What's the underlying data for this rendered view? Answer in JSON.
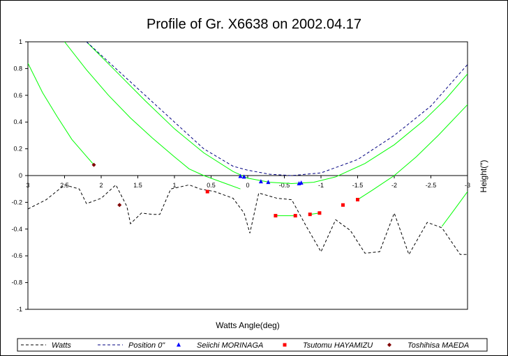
{
  "chart_data": {
    "type": "line",
    "title": "Profile of Gr. X6638 on 2002.04.17",
    "xlabel": "Watts Angle(deg)",
    "ylabel": "Height(\")",
    "xlim": [
      3,
      -3
    ],
    "ylim": [
      -1,
      1
    ],
    "x_ticks": [
      3,
      2.5,
      2,
      1.5,
      1,
      0.5,
      0,
      -0.5,
      -1,
      -1.5,
      -2,
      -2.5,
      -3
    ],
    "x_tick_labels": [
      "3",
      "2.5",
      "2",
      "1.5",
      "1",
      "0.5",
      "0",
      "-0.5",
      "-1",
      "-1.5",
      "-2",
      "-2.5",
      "-3"
    ],
    "y_ticks": [
      1,
      0.8,
      0.6,
      0.4,
      0.2,
      0,
      -0.2,
      -0.4,
      -0.6,
      -0.8,
      -1
    ],
    "y_tick_labels": [
      "1",
      "0.8",
      "0.6",
      "0.4",
      "0.2",
      "0",
      "-0.2",
      "-0.4",
      "-0.6",
      "-0.8",
      "-1"
    ],
    "legend_position": "bottom",
    "series": [
      {
        "name": "Watts",
        "style": "dashed",
        "color": "#000000",
        "points": [
          [
            3,
            -0.25
          ],
          [
            2.75,
            -0.18
          ],
          [
            2.5,
            -0.07
          ],
          [
            2.3,
            -0.1
          ],
          [
            2.2,
            -0.21
          ],
          [
            2.0,
            -0.17
          ],
          [
            1.8,
            -0.07
          ],
          [
            1.65,
            -0.23
          ],
          [
            1.6,
            -0.36
          ],
          [
            1.45,
            -0.28
          ],
          [
            1.3,
            -0.29
          ],
          [
            1.2,
            -0.29
          ],
          [
            1.05,
            -0.1
          ],
          [
            0.8,
            -0.07
          ],
          [
            0.65,
            -0.1
          ],
          [
            0.45,
            -0.12
          ],
          [
            0.2,
            -0.17
          ],
          [
            0.05,
            -0.28
          ],
          [
            -0.03,
            -0.43
          ],
          [
            -0.15,
            -0.13
          ],
          [
            -0.4,
            -0.17
          ],
          [
            -0.6,
            -0.18
          ],
          [
            -0.8,
            -0.38
          ],
          [
            -1.0,
            -0.57
          ],
          [
            -1.2,
            -0.33
          ],
          [
            -1.4,
            -0.41
          ],
          [
            -1.6,
            -0.58
          ],
          [
            -1.8,
            -0.57
          ],
          [
            -2.0,
            -0.28
          ],
          [
            -2.2,
            -0.59
          ],
          [
            -2.45,
            -0.35
          ],
          [
            -2.65,
            -0.39
          ],
          [
            -2.9,
            -0.59
          ],
          [
            -3.0,
            -0.59
          ]
        ]
      },
      {
        "name": "Position 0\"",
        "style": "dashed",
        "color": "#000080",
        "points": [
          [
            2.2,
            1.0
          ],
          [
            1.8,
            0.8
          ],
          [
            1.4,
            0.6
          ],
          [
            1.0,
            0.4
          ],
          [
            0.6,
            0.2
          ],
          [
            0.2,
            0.07
          ],
          [
            0.0,
            0.04
          ],
          [
            -0.3,
            0.01
          ],
          [
            -0.6,
            0.0
          ],
          [
            -1.0,
            0.02
          ],
          [
            -1.5,
            0.12
          ],
          [
            -2.0,
            0.3
          ],
          [
            -2.5,
            0.52
          ],
          [
            -3.0,
            0.83
          ]
        ]
      },
      {
        "name": "Seiichi MORINAGA",
        "style": "markers",
        "marker": "triangle",
        "color": "#0000ff",
        "points": [
          [
            0.1,
            -0.005
          ],
          [
            0.05,
            -0.01
          ],
          [
            -0.18,
            -0.045
          ],
          [
            -0.28,
            -0.05
          ],
          [
            -0.7,
            -0.06
          ],
          [
            -0.73,
            -0.055
          ]
        ]
      },
      {
        "name": "Tsutomu HAYAMIZU",
        "style": "markers",
        "marker": "square",
        "color": "#ff0000",
        "points": [
          [
            0.55,
            -0.12
          ],
          [
            -0.38,
            -0.3
          ],
          [
            -0.65,
            -0.3
          ],
          [
            -0.85,
            -0.29
          ],
          [
            -0.98,
            -0.28
          ],
          [
            -1.3,
            -0.22
          ],
          [
            -1.5,
            -0.18
          ]
        ]
      },
      {
        "name": "Toshihisa MAEDA",
        "style": "markers",
        "marker": "diamond",
        "color": "#800000",
        "points": [
          [
            2.1,
            0.08
          ],
          [
            1.75,
            -0.22
          ]
        ]
      }
    ],
    "fit_curves": [
      {
        "color": "#00ff00",
        "points": [
          [
            3.0,
            0.84
          ],
          [
            2.8,
            0.62
          ],
          [
            2.6,
            0.44
          ],
          [
            2.4,
            0.27
          ],
          [
            2.1,
            0.08
          ]
        ]
      },
      {
        "color": "#00ff00",
        "points": [
          [
            2.5,
            1.0
          ],
          [
            2.2,
            0.79
          ],
          [
            1.9,
            0.6
          ],
          [
            1.6,
            0.43
          ],
          [
            1.3,
            0.28
          ],
          [
            1.0,
            0.14
          ],
          [
            0.8,
            0.05
          ],
          [
            0.6,
            0.0
          ],
          [
            0.3,
            -0.06
          ],
          [
            0.1,
            -0.1
          ]
        ]
      },
      {
        "color": "#00ff00",
        "points": [
          [
            2.2,
            1.0
          ],
          [
            1.8,
            0.78
          ],
          [
            1.4,
            0.56
          ],
          [
            1.0,
            0.35
          ],
          [
            0.6,
            0.17
          ],
          [
            0.2,
            0.03
          ],
          [
            0.0,
            -0.02
          ],
          [
            -0.3,
            -0.05
          ],
          [
            -0.6,
            -0.06
          ],
          [
            -0.9,
            -0.05
          ],
          [
            -1.2,
            -0.01
          ],
          [
            -1.6,
            0.09
          ],
          [
            -2.0,
            0.23
          ],
          [
            -2.4,
            0.41
          ],
          [
            -2.7,
            0.57
          ],
          [
            -3.0,
            0.76
          ]
        ]
      },
      {
        "color": "#00ff00",
        "points": [
          [
            -1.5,
            -0.18
          ],
          [
            -1.7,
            -0.11
          ],
          [
            -2.0,
            0.0
          ],
          [
            -2.3,
            0.14
          ],
          [
            -2.6,
            0.3
          ],
          [
            -3.0,
            0.53
          ]
        ]
      },
      {
        "color": "#00ff00",
        "points": [
          [
            -0.38,
            -0.3
          ],
          [
            -0.65,
            -0.3
          ]
        ]
      },
      {
        "color": "#00ff00",
        "points": [
          [
            -0.85,
            -0.29
          ],
          [
            -0.98,
            -0.28
          ]
        ]
      },
      {
        "color": "#00ff00",
        "points": [
          [
            -2.65,
            -0.38
          ],
          [
            -2.8,
            -0.27
          ],
          [
            -3.0,
            -0.12
          ]
        ]
      }
    ]
  }
}
